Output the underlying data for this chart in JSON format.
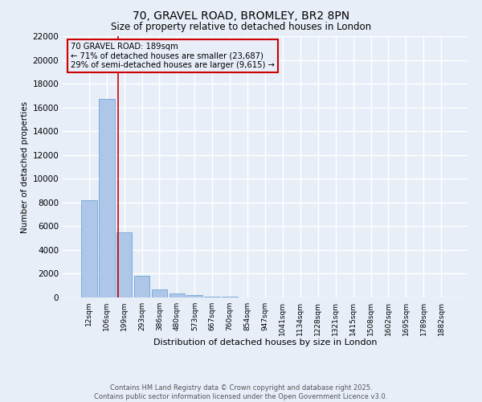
{
  "title1": "70, GRAVEL ROAD, BROMLEY, BR2 8PN",
  "title2": "Size of property relative to detached houses in London",
  "xlabel": "Distribution of detached houses by size in London",
  "ylabel": "Number of detached properties",
  "bar_categories": [
    "12sqm",
    "106sqm",
    "199sqm",
    "293sqm",
    "386sqm",
    "480sqm",
    "573sqm",
    "667sqm",
    "760sqm",
    "854sqm",
    "947sqm",
    "1041sqm",
    "1134sqm",
    "1228sqm",
    "1321sqm",
    "1415sqm",
    "1508sqm",
    "1602sqm",
    "1695sqm",
    "1789sqm",
    "1882sqm"
  ],
  "bar_values": [
    8200,
    16700,
    5500,
    1800,
    700,
    350,
    200,
    100,
    50,
    30,
    20,
    15,
    10,
    8,
    5,
    4,
    3,
    2,
    2,
    1,
    1
  ],
  "bar_color": "#aec6e8",
  "bar_edgecolor": "#5b9bd5",
  "background_color": "#e8eef8",
  "grid_color": "#ffffff",
  "ylim": [
    0,
    22000
  ],
  "yticks": [
    0,
    2000,
    4000,
    6000,
    8000,
    10000,
    12000,
    14000,
    16000,
    18000,
    20000,
    22000
  ],
  "red_line_x": 1.65,
  "annotation_text": "70 GRAVEL ROAD: 189sqm\n← 71% of detached houses are smaller (23,687)\n29% of semi-detached houses are larger (9,615) →",
  "annotation_box_color": "#cc0000",
  "footer1": "Contains HM Land Registry data © Crown copyright and database right 2025.",
  "footer2": "Contains public sector information licensed under the Open Government Licence v3.0."
}
